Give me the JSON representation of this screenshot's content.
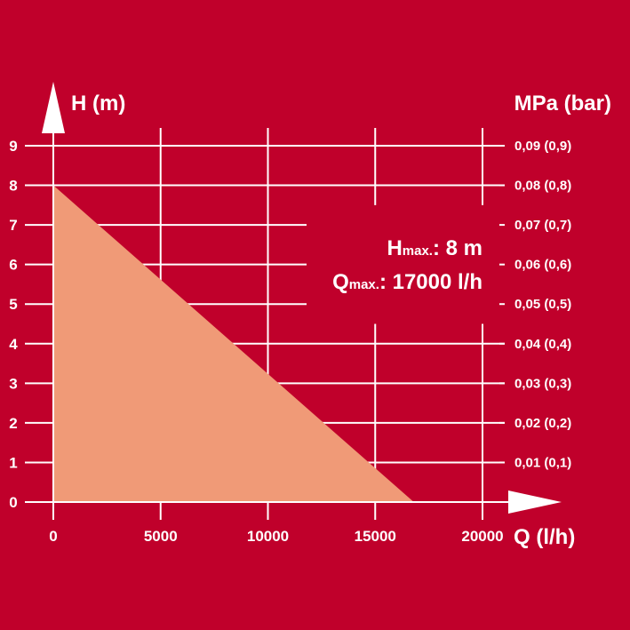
{
  "chart_data": {
    "type": "area",
    "xlabel": "Q (l/h)",
    "ylabel": "H (m)",
    "y2label": "MPa (bar)",
    "xlim": [
      0,
      20000
    ],
    "ylim": [
      0,
      9
    ],
    "x_ticks": [
      "0",
      "5000",
      "10000",
      "15000",
      "20000"
    ],
    "y_ticks": [
      "0",
      "1",
      "2",
      "3",
      "4",
      "5",
      "6",
      "7",
      "8",
      "9"
    ],
    "y2_ticks": [
      "0,01 (0,1)",
      "0,02 (0,2)",
      "0,03 (0,3)",
      "0,04 (0,4)",
      "0,05 (0,5)",
      "0,06 (0,6)",
      "0,07 (0,7)",
      "0,08 (0,8)",
      "0,09 (0,9)"
    ],
    "series": [
      {
        "x": [
          0,
          16800
        ],
        "y": [
          8,
          0
        ]
      }
    ],
    "annotations": {
      "hmax_main": "H",
      "hmax_sub": "max.",
      "hmax_value": ": 8 m",
      "qmax_main": "Q",
      "qmax_sub": "max.",
      "qmax_value": ": 17000 l/h"
    },
    "colors": {
      "background": "#c0002b",
      "area": "#f09a77",
      "lines": "#ffffff"
    }
  }
}
